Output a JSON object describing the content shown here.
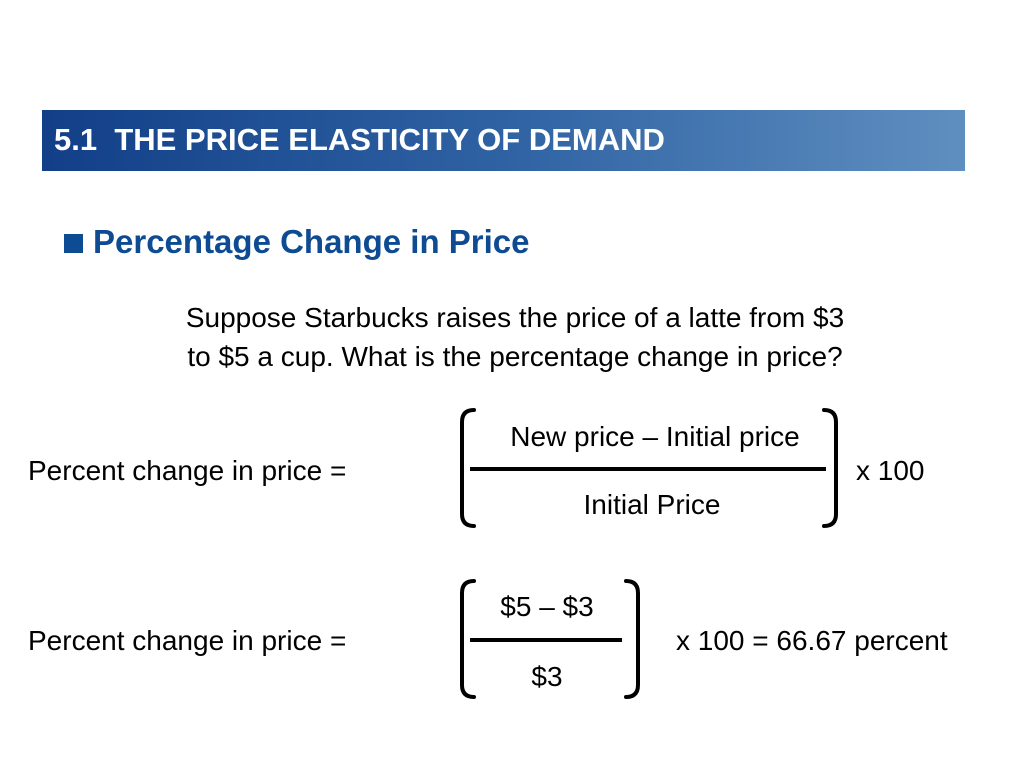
{
  "header": {
    "title": "5.1  THE PRICE ELASTICITY OF DEMAND"
  },
  "section": {
    "heading": "Percentage Change in Price",
    "bullet_icon": "square-bullet"
  },
  "question": {
    "line1": "Suppose Starbucks raises the price of a latte from $3",
    "line2": "to $5 a cup. What is the percentage change in price?"
  },
  "formula_general": {
    "label": "Percent change in price =",
    "numerator": "New price – Initial price",
    "denominator": "Initial Price",
    "multiplier": "x 100"
  },
  "formula_applied": {
    "label": "Percent change in price =",
    "numerator": "$5 – $3",
    "denominator": "$3",
    "result": "x 100 = 66.67 percent"
  },
  "colors": {
    "title_bar_start": "#123f88",
    "title_bar_end": "#5f8fc0",
    "heading": "#0d4b93"
  }
}
